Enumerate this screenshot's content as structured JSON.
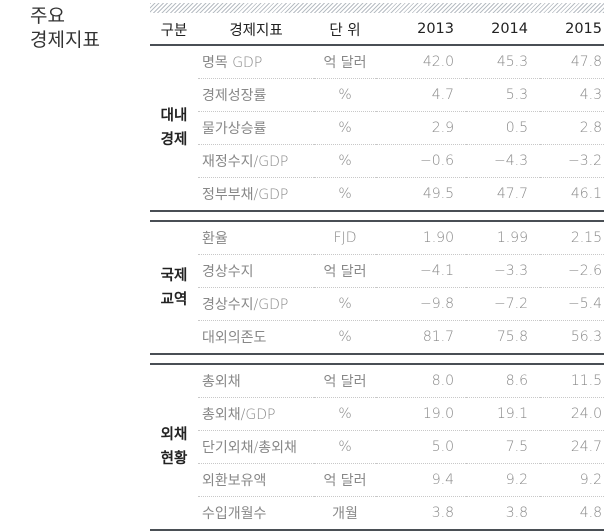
{
  "title_line1": "주요",
  "title_line2": "경제지표",
  "headers": {
    "group": "구분",
    "indicator": "경제지표",
    "unit": "단 위",
    "years": [
      "2013",
      "2014",
      "2015"
    ]
  },
  "groups": [
    {
      "label1": "대내",
      "label2": "경제",
      "rows": [
        {
          "name": "명목 GDP",
          "unit": "억 달러",
          "values": [
            "42.0",
            "45.3",
            "47.8"
          ]
        },
        {
          "name": "경제성장률",
          "unit": "%",
          "values": [
            "4.7",
            "5.3",
            "4.3"
          ]
        },
        {
          "name": "물가상승률",
          "unit": "%",
          "values": [
            "2.9",
            "0.5",
            "2.8"
          ]
        },
        {
          "name": "재정수지/GDP",
          "unit": "%",
          "values": [
            "−0.6",
            "−4.3",
            "−3.2"
          ]
        },
        {
          "name": "정부부채/GDP",
          "unit": "%",
          "values": [
            "49.5",
            "47.7",
            "46.1"
          ]
        }
      ]
    },
    {
      "label1": "국제",
      "label2": "교역",
      "rows": [
        {
          "name": "환율",
          "unit": "FJD",
          "values": [
            "1.90",
            "1.99",
            "2.15"
          ]
        },
        {
          "name": "경상수지",
          "unit": "억 달러",
          "values": [
            "−4.1",
            "−3.3",
            "−2.6"
          ]
        },
        {
          "name": "경상수지/GDP",
          "unit": "%",
          "values": [
            "−9.8",
            "−7.2",
            "−5.4"
          ]
        },
        {
          "name": "대외의존도",
          "unit": "%",
          "values": [
            "81.7",
            "75.8",
            "56.3"
          ]
        }
      ]
    },
    {
      "label1": "외채",
      "label2": "현황",
      "rows": [
        {
          "name": "총외채",
          "unit": "억 달러",
          "values": [
            "8.0",
            "8.6",
            "11.5"
          ]
        },
        {
          "name": "총외채/GDP",
          "unit": "%",
          "values": [
            "19.0",
            "19.1",
            "24.0"
          ]
        },
        {
          "name": "단기외채/총외채",
          "unit": "%",
          "values": [
            "5.0",
            "7.5",
            "24.7"
          ]
        },
        {
          "name": "외환보유액",
          "unit": "억 달러",
          "values": [
            "9.4",
            "9.2",
            "9.2"
          ]
        },
        {
          "name": "수입개월수",
          "unit": "개월",
          "values": [
            "3.8",
            "3.8",
            "4.8"
          ]
        }
      ]
    }
  ]
}
